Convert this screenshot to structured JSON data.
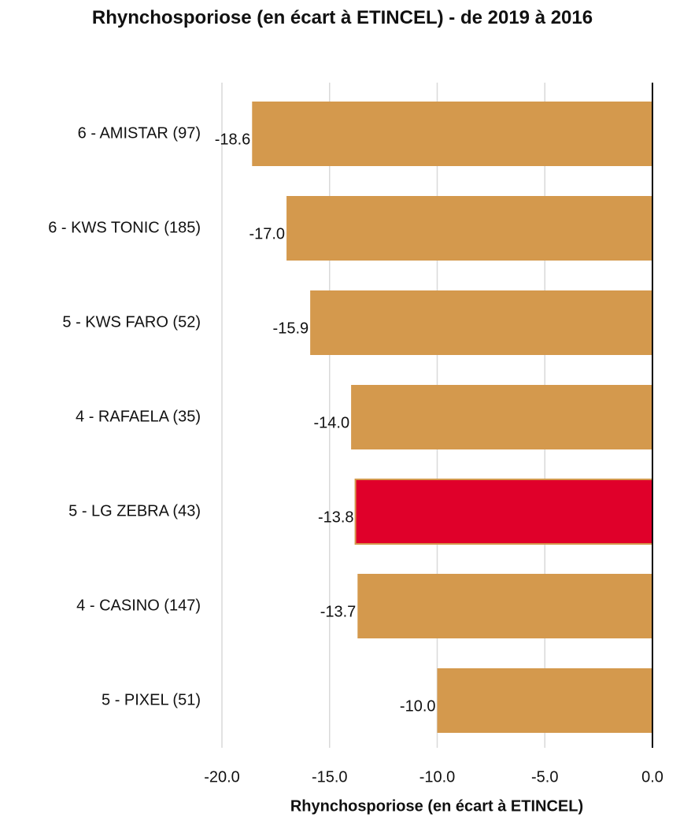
{
  "chart_data": {
    "type": "barh",
    "title": "Rhynchosporiose  (en écart à ETINCEL) - de 2019 à 2016",
    "xlabel": "Rhynchosporiose (en écart à ETINCEL)",
    "categories": [
      "6 - AMISTAR (97)",
      "6 - KWS TONIC (185)",
      "5 - KWS FARO (52)",
      "4 - RAFAELA (35)",
      "5 - LG ZEBRA (43)",
      "4 - CASINO (147)",
      "5 - PIXEL (51)"
    ],
    "values": [
      -18.6,
      -17.0,
      -15.9,
      -14.0,
      -13.8,
      -13.7,
      -10.0
    ],
    "value_labels": [
      "-18.6",
      "-17.0",
      "-15.9",
      "-14.0",
      "-13.8",
      "-13.7",
      "-10.0"
    ],
    "colors": [
      "#d4994d",
      "#d4994d",
      "#d4994d",
      "#d4994d",
      "#e0002a",
      "#d4994d",
      "#d4994d"
    ],
    "xlim": [
      -20,
      0
    ],
    "xticks": [
      {
        "value": -20,
        "label": "-20.0"
      },
      {
        "value": -15,
        "label": "-15.0"
      },
      {
        "value": -10,
        "label": "-10.0"
      },
      {
        "value": -5,
        "label": "-5.0"
      },
      {
        "value": 0,
        "label": "0.0"
      }
    ],
    "grid": true
  }
}
